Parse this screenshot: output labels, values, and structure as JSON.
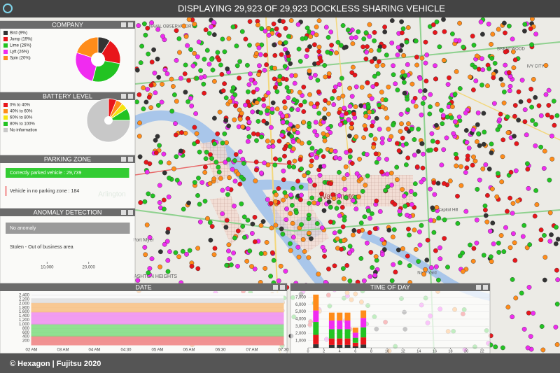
{
  "header": {
    "title": "DISPLAYING 29,923 OF 29,923 DOCKLESS SHARING VEHICLE"
  },
  "footer": {
    "text": "© Hexagon | Fujitsu 2020"
  },
  "map_labels": [
    "Washington",
    "Arlington",
    "Fort Myer",
    "ASHTON HEIGHTS",
    "NAVAL OBSERVATORY",
    "BRENTWOOD",
    "IVY CITY",
    "Capitol Hill",
    "Navy Yard"
  ],
  "chart_data": [
    {
      "type": "pie",
      "title": "COMPANY",
      "series": [
        {
          "name": "Bird (9%)",
          "value": 9,
          "color": "#333333"
        },
        {
          "name": "Jump (19%)",
          "value": 19,
          "color": "#e8161b"
        },
        {
          "name": "Lime (26%)",
          "value": 26,
          "color": "#22c322"
        },
        {
          "name": "Lyft (26%)",
          "value": 26,
          "color": "#f02bf0"
        },
        {
          "name": "Spin (20%)",
          "value": 20,
          "color": "#ff8c1a"
        }
      ]
    },
    {
      "type": "pie",
      "title": "BATTERY LEVEL",
      "series": [
        {
          "name": "0% to 40%",
          "value": 6,
          "color": "#e8161b"
        },
        {
          "name": "40% to 60%",
          "value": 5,
          "color": "#ff8c1a"
        },
        {
          "name": "60% to 80%",
          "value": 5,
          "color": "#f5e50f"
        },
        {
          "name": "80% to 100%",
          "value": 9,
          "color": "#22c322"
        },
        {
          "name": "No information",
          "value": 75,
          "color": "#c8c8c8"
        }
      ]
    },
    {
      "type": "hbar",
      "title": "PARKING ZONE",
      "xlim": [
        0,
        30000
      ],
      "items": [
        {
          "label": "Correctly parked vehicle : 29,739",
          "value": 29739,
          "color": "#33cc33"
        },
        {
          "label": "Vehicle in no parking zone : 184",
          "value": 184,
          "color": "#e8161b"
        }
      ]
    },
    {
      "type": "hbar",
      "title": "ANOMALY DETECTION",
      "xlim": [
        0,
        30000
      ],
      "xticks": [
        {
          "value": 10000,
          "label": "10,000"
        },
        {
          "value": 20000,
          "label": "20,000"
        }
      ],
      "items": [
        {
          "label": "No anomaly",
          "value": 29923,
          "color": "#9a9a9a"
        },
        {
          "label": "Stolen - Out of business area",
          "value": 0,
          "color": "#e8161b"
        }
      ]
    },
    {
      "type": "area",
      "title": "DATE",
      "categories": [
        "02 AM",
        "03 AM",
        "04 AM",
        "04:30",
        "05 AM",
        "06 AM",
        "06:30",
        "07 AM",
        "07:30"
      ],
      "ylim": [
        0,
        2500
      ],
      "yticks": [
        200,
        400,
        600,
        800,
        {
          "value": 1000,
          "label": "1,000"
        },
        {
          "value": 1200,
          "label": "1,200"
        },
        {
          "value": 1400,
          "label": "1,400"
        },
        {
          "value": 1600,
          "label": "1,600"
        },
        {
          "value": 1800,
          "label": "1,800"
        },
        {
          "value": 2000,
          "label": "2,000"
        },
        {
          "value": 2200,
          "label": "2,200"
        },
        {
          "value": 2400,
          "label": "2,400"
        }
      ],
      "series": [
        {
          "name": "Jump",
          "color": "#f08080",
          "values": [
            430,
            430,
            430,
            430,
            430,
            430,
            430,
            430,
            430
          ]
        },
        {
          "name": "Lime",
          "color": "#7fdc7f",
          "values": [
            580,
            580,
            580,
            580,
            580,
            580,
            580,
            580,
            580
          ]
        },
        {
          "name": "Lyft",
          "color": "#f08cf0",
          "values": [
            580,
            580,
            580,
            580,
            580,
            580,
            580,
            580,
            580
          ]
        },
        {
          "name": "Spin",
          "color": "#f8c080",
          "values": [
            450,
            450,
            450,
            450,
            450,
            450,
            450,
            450,
            450
          ]
        },
        {
          "name": "Bird",
          "color": "#e0e0e0",
          "values": [
            200,
            200,
            200,
            200,
            200,
            200,
            200,
            200,
            200
          ]
        }
      ]
    },
    {
      "type": "stacked-bar",
      "title": "TIME OF DAY",
      "x": [
        1,
        3,
        4,
        5,
        6,
        7
      ],
      "xlim": [
        0,
        23
      ],
      "xticks": [
        0,
        2,
        4,
        6,
        8,
        10,
        12,
        14,
        16,
        18,
        20,
        22
      ],
      "ylim": [
        0,
        7500
      ],
      "yticks": [
        {
          "value": 1000,
          "label": "1,000"
        },
        {
          "value": 2000,
          "label": "2,000"
        },
        {
          "value": 3000,
          "label": "3,000"
        },
        {
          "value": 4000,
          "label": "4,000"
        },
        {
          "value": 5000,
          "label": "5,000"
        },
        {
          "value": 6000,
          "label": "6,000"
        },
        {
          "value": 7000,
          "label": "7,000"
        }
      ],
      "series": [
        {
          "name": "Bird",
          "color": "#333333",
          "values": [
            500,
            400,
            400,
            400,
            200,
            450
          ]
        },
        {
          "name": "Jump",
          "color": "#e8161b",
          "values": [
            1300,
            900,
            900,
            900,
            500,
            1000
          ]
        },
        {
          "name": "Lime",
          "color": "#22c322",
          "values": [
            1800,
            1300,
            1300,
            1300,
            700,
            1400
          ]
        },
        {
          "name": "Lyft",
          "color": "#f02bf0",
          "values": [
            1600,
            1200,
            1200,
            1200,
            700,
            1300
          ]
        },
        {
          "name": "Spin",
          "color": "#ff8c1a",
          "values": [
            2200,
            1100,
            1100,
            1100,
            700,
            1050
          ]
        }
      ]
    }
  ]
}
